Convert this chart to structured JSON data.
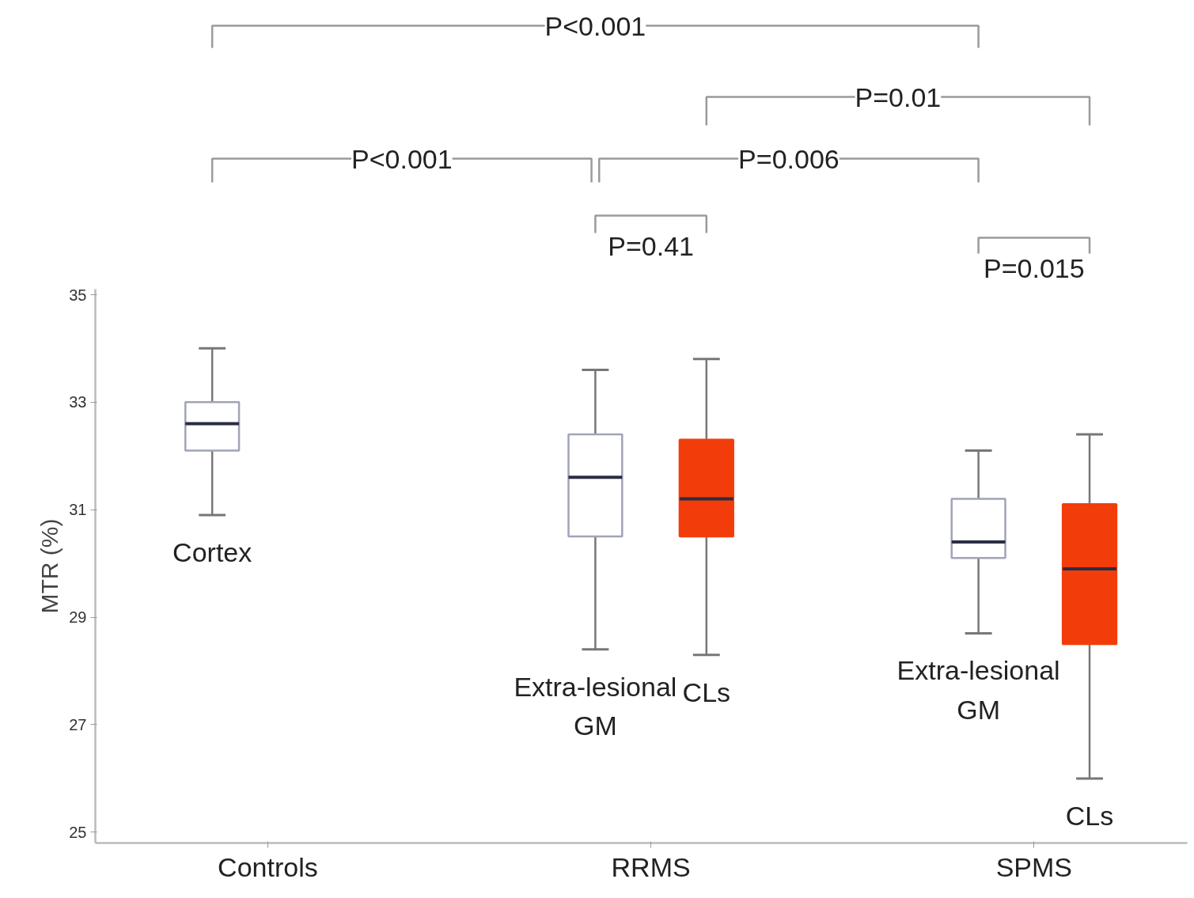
{
  "chart_data": {
    "type": "box",
    "ylabel": "MTR (%)",
    "categories": [
      "Controls",
      "RRMS",
      "SPMS"
    ],
    "ylim": [
      24.8,
      35.1
    ],
    "yticks": [
      25,
      27,
      29,
      31,
      33,
      35
    ],
    "series": [
      {
        "color": "#ffffff",
        "value_labels": [
          "Cortex",
          "Extra-lesional\nGM",
          "Extra-lesional\nGM"
        ],
        "boxes": [
          {
            "low": 30.9,
            "q1": 32.1,
            "median": 32.6,
            "q3": 33.0,
            "high": 34.0
          },
          {
            "low": 28.4,
            "q1": 30.5,
            "median": 31.6,
            "q3": 32.4,
            "high": 33.6
          },
          {
            "low": 28.7,
            "q1": 30.1,
            "median": 30.4,
            "q3": 31.2,
            "high": 32.1
          }
        ]
      },
      {
        "color": "#f23d0b",
        "value_labels": [
          null,
          "CLs",
          "CLs"
        ],
        "boxes": [
          null,
          {
            "low": 28.3,
            "q1": 30.5,
            "median": 31.2,
            "q3": 32.3,
            "high": 33.8
          },
          {
            "low": 26.0,
            "q1": 28.5,
            "median": 29.9,
            "q3": 31.1,
            "high": 32.4
          }
        ]
      }
    ],
    "annotations": [
      "P<0.001",
      "P=0.01",
      "P<0.001",
      "P=0.006",
      "P=0.41",
      "P=0.015"
    ]
  }
}
